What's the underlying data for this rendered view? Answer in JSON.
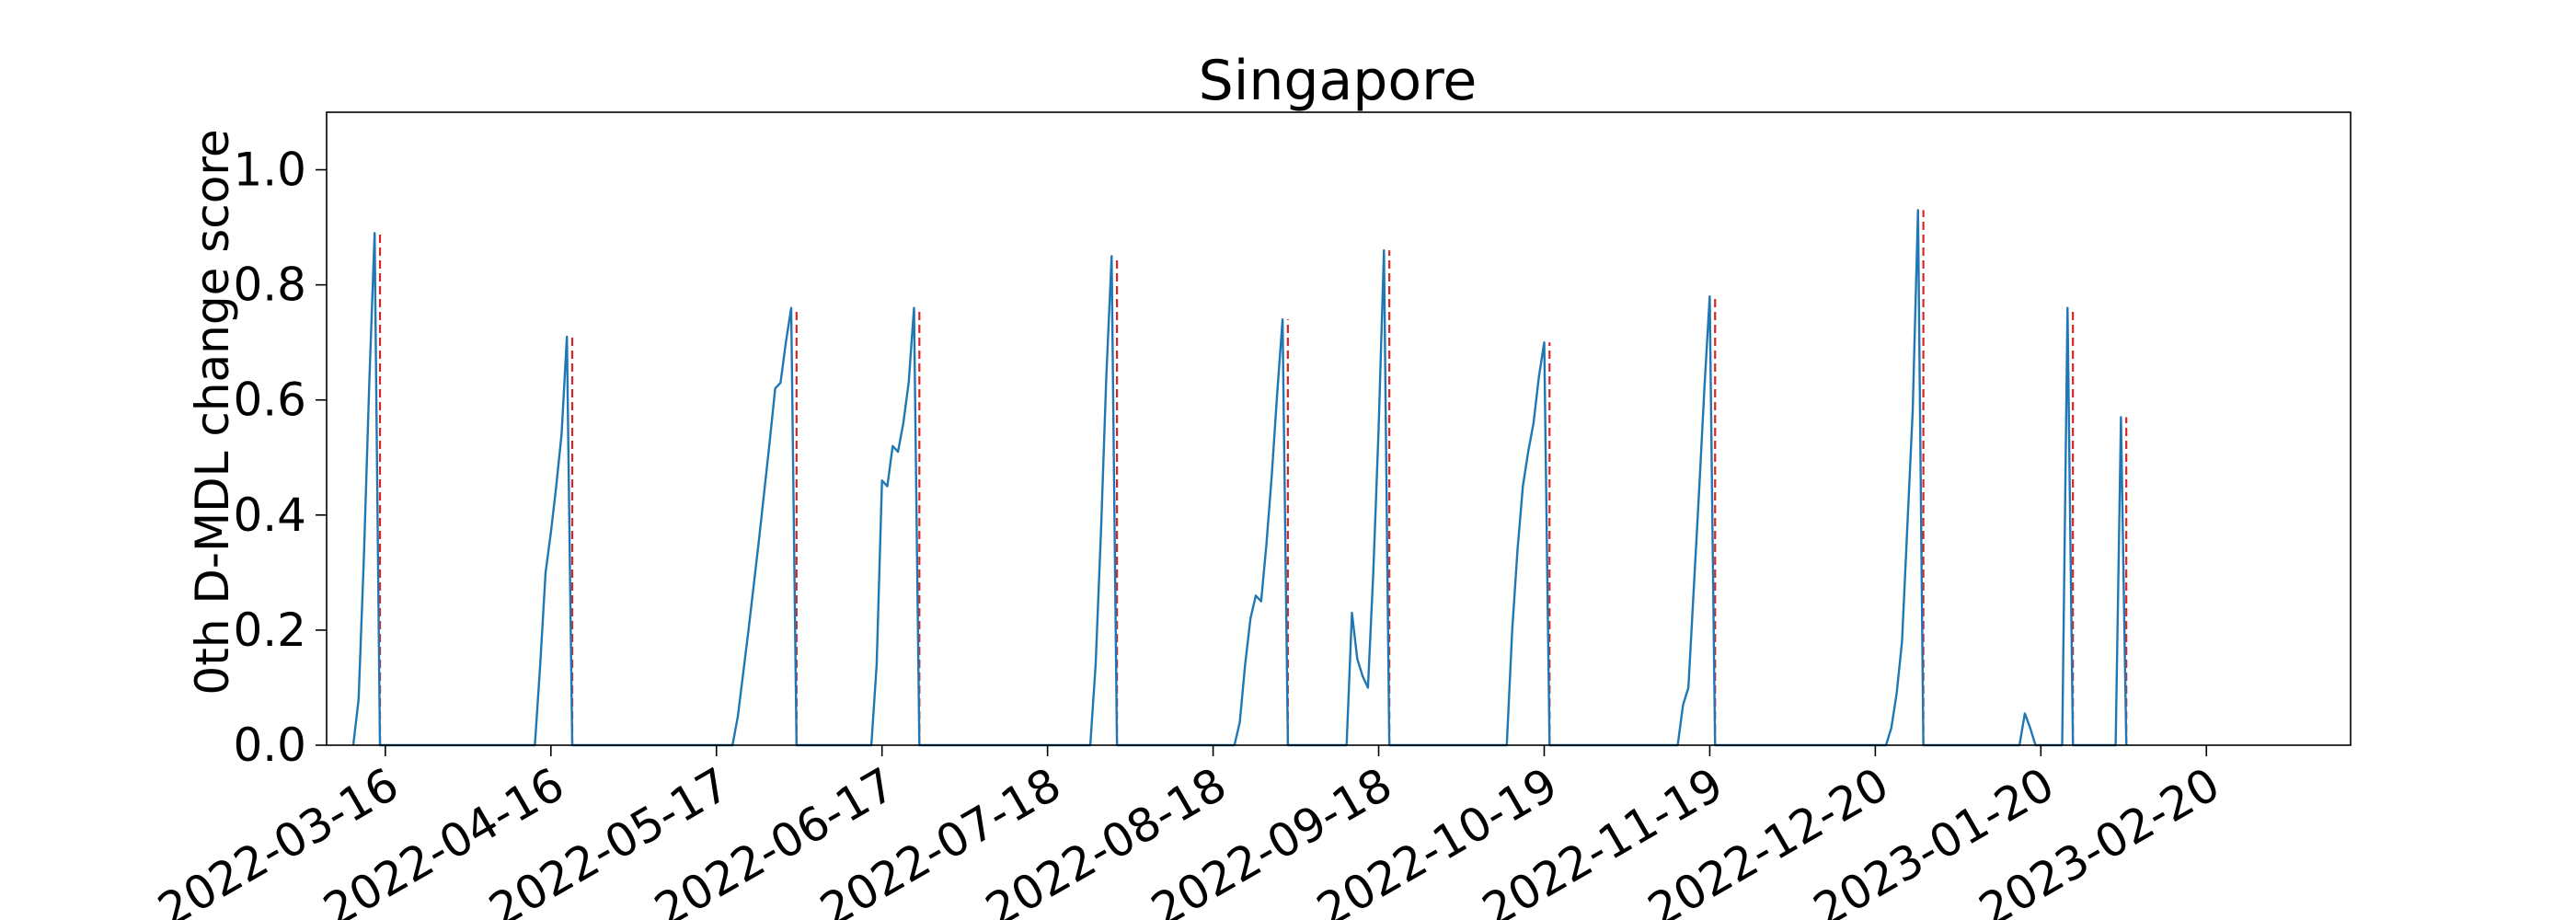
{
  "chart_data": {
    "type": "line",
    "title": "Singapore",
    "xlabel": "",
    "ylabel": "0th D-MDL change score",
    "xlim": [
      "2022-03-05",
      "2023-03-19"
    ],
    "ylim": [
      0,
      1.1
    ],
    "yticks": [
      0.0,
      0.2,
      0.4,
      0.6,
      0.8,
      1.0
    ],
    "ytick_labels": [
      "0.0",
      "0.2",
      "0.4",
      "0.6",
      "0.8",
      "1.0"
    ],
    "xticks": [
      "2022-03-16",
      "2022-04-16",
      "2022-05-17",
      "2022-06-17",
      "2022-07-18",
      "2022-08-18",
      "2022-09-18",
      "2022-10-19",
      "2022-11-19",
      "2022-12-20",
      "2023-01-20",
      "2023-02-20"
    ],
    "grid": false,
    "series": [
      {
        "color": "#1f77b4",
        "style": "solid",
        "points": [
          [
            "2022-03-10",
            0.0
          ],
          [
            "2022-03-11",
            0.08
          ],
          [
            "2022-03-12",
            0.33
          ],
          [
            "2022-03-13",
            0.63
          ],
          [
            "2022-03-14",
            0.89
          ],
          [
            "2022-03-15",
            0.0
          ],
          [
            "2022-04-13",
            0.0
          ],
          [
            "2022-04-14",
            0.14
          ],
          [
            "2022-04-15",
            0.3
          ],
          [
            "2022-04-16",
            0.37
          ],
          [
            "2022-04-17",
            0.45
          ],
          [
            "2022-04-18",
            0.54
          ],
          [
            "2022-04-19",
            0.71
          ],
          [
            "2022-04-20",
            0.0
          ],
          [
            "2022-05-20",
            0.0
          ],
          [
            "2022-05-21",
            0.05
          ],
          [
            "2022-05-23",
            0.2
          ],
          [
            "2022-05-25",
            0.36
          ],
          [
            "2022-05-27",
            0.53
          ],
          [
            "2022-05-28",
            0.62
          ],
          [
            "2022-05-29",
            0.63
          ],
          [
            "2022-05-30",
            0.7
          ],
          [
            "2022-05-31",
            0.76
          ],
          [
            "2022-06-01",
            0.0
          ],
          [
            "2022-06-15",
            0.0
          ],
          [
            "2022-06-16",
            0.14
          ],
          [
            "2022-06-17",
            0.46
          ],
          [
            "2022-06-18",
            0.45
          ],
          [
            "2022-06-19",
            0.52
          ],
          [
            "2022-06-20",
            0.51
          ],
          [
            "2022-06-21",
            0.56
          ],
          [
            "2022-06-22",
            0.63
          ],
          [
            "2022-06-23",
            0.76
          ],
          [
            "2022-06-24",
            0.0
          ],
          [
            "2022-07-26",
            0.0
          ],
          [
            "2022-07-27",
            0.14
          ],
          [
            "2022-07-28",
            0.37
          ],
          [
            "2022-07-29",
            0.64
          ],
          [
            "2022-07-30",
            0.85
          ],
          [
            "2022-07-31",
            0.0
          ],
          [
            "2022-08-22",
            0.0
          ],
          [
            "2022-08-23",
            0.04
          ],
          [
            "2022-08-24",
            0.14
          ],
          [
            "2022-08-25",
            0.22
          ],
          [
            "2022-08-26",
            0.26
          ],
          [
            "2022-08-27",
            0.25
          ],
          [
            "2022-08-28",
            0.35
          ],
          [
            "2022-08-29",
            0.47
          ],
          [
            "2022-08-30",
            0.61
          ],
          [
            "2022-08-31",
            0.74
          ],
          [
            "2022-09-01",
            0.0
          ],
          [
            "2022-09-12",
            0.0
          ],
          [
            "2022-09-13",
            0.23
          ],
          [
            "2022-09-14",
            0.15
          ],
          [
            "2022-09-15",
            0.12
          ],
          [
            "2022-09-16",
            0.1
          ],
          [
            "2022-09-17",
            0.3
          ],
          [
            "2022-09-18",
            0.55
          ],
          [
            "2022-09-19",
            0.86
          ],
          [
            "2022-09-20",
            0.0
          ],
          [
            "2022-10-12",
            0.0
          ],
          [
            "2022-10-13",
            0.2
          ],
          [
            "2022-10-14",
            0.34
          ],
          [
            "2022-10-15",
            0.45
          ],
          [
            "2022-10-16",
            0.51
          ],
          [
            "2022-10-17",
            0.56
          ],
          [
            "2022-10-18",
            0.64
          ],
          [
            "2022-10-19",
            0.7
          ],
          [
            "2022-10-20",
            0.0
          ],
          [
            "2022-11-13",
            0.0
          ],
          [
            "2022-11-14",
            0.07
          ],
          [
            "2022-11-15",
            0.1
          ],
          [
            "2022-11-16",
            0.27
          ],
          [
            "2022-11-17",
            0.44
          ],
          [
            "2022-11-18",
            0.62
          ],
          [
            "2022-11-19",
            0.78
          ],
          [
            "2022-11-20",
            0.0
          ],
          [
            "2022-12-22",
            0.0
          ],
          [
            "2022-12-23",
            0.03
          ],
          [
            "2022-12-24",
            0.09
          ],
          [
            "2022-12-25",
            0.18
          ],
          [
            "2022-12-26",
            0.38
          ],
          [
            "2022-12-27",
            0.58
          ],
          [
            "2022-12-28",
            0.93
          ],
          [
            "2022-12-29",
            0.0
          ],
          [
            "2023-01-16",
            0.0
          ],
          [
            "2023-01-17",
            0.055
          ],
          [
            "2023-01-18",
            0.03
          ],
          [
            "2023-01-19",
            0.0
          ],
          [
            "2023-01-24",
            0.0
          ],
          [
            "2023-01-25",
            0.76
          ],
          [
            "2023-01-26",
            0.0
          ],
          [
            "2023-02-03",
            0.0
          ],
          [
            "2023-02-04",
            0.57
          ],
          [
            "2023-02-05",
            0.0
          ]
        ]
      }
    ],
    "alarms": {
      "color": "#d62728",
      "style": "dashed",
      "x": [
        "2022-03-15",
        "2022-04-20",
        "2022-06-01",
        "2022-06-24",
        "2022-07-31",
        "2022-09-01",
        "2022-09-20",
        "2022-10-20",
        "2022-11-20",
        "2022-12-29",
        "2023-01-26",
        "2023-02-05"
      ],
      "heights": [
        0.89,
        0.71,
        0.76,
        0.76,
        0.85,
        0.74,
        0.86,
        0.7,
        0.78,
        0.93,
        0.76,
        0.57
      ]
    }
  }
}
